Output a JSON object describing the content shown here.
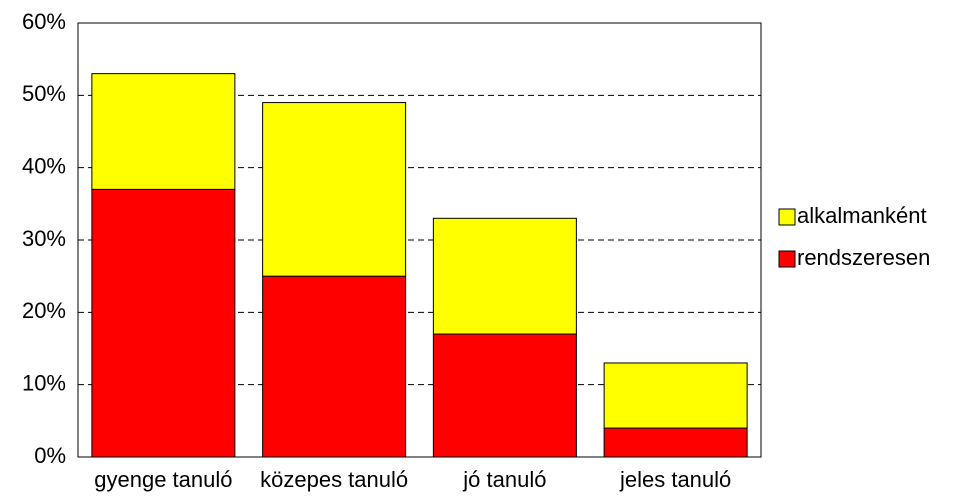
{
  "chart_data": {
    "type": "stacked_bar",
    "categories": [
      "gyenge tanuló",
      "közepes tanuló",
      "jó tanuló",
      "jeles tanuló"
    ],
    "series": [
      {
        "name": "rendszeresen",
        "color": "#ff0000",
        "values": [
          37,
          25,
          17,
          4
        ]
      },
      {
        "name": "alkalmanként",
        "color": "#ffff00",
        "values": [
          16,
          24,
          16,
          9
        ]
      }
    ],
    "ylim": [
      0,
      60
    ],
    "yticks": [
      {
        "value": 0,
        "label": "0%"
      },
      {
        "value": 10,
        "label": "10%"
      },
      {
        "value": 20,
        "label": "20%"
      },
      {
        "value": 30,
        "label": "30%"
      },
      {
        "value": 40,
        "label": "40%"
      },
      {
        "value": 50,
        "label": "50%"
      },
      {
        "value": 60,
        "label": "60%"
      }
    ],
    "grid": true,
    "legend": "right"
  }
}
